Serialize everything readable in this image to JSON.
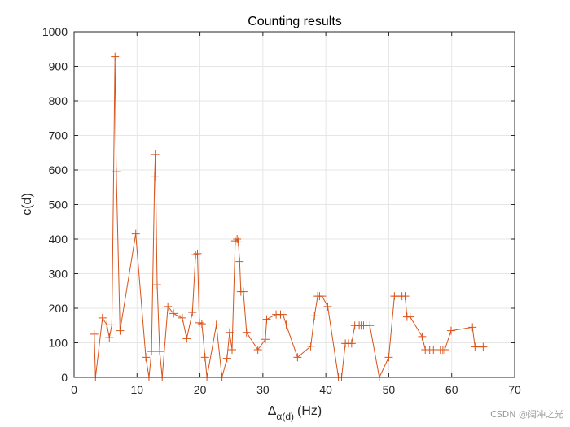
{
  "chart_data": {
    "type": "line",
    "title": "Counting results",
    "ylabel": "c(d)",
    "xlabel": {
      "symbol": "Δ",
      "subscript": "α(d)",
      "unit": "(Hz)"
    },
    "xlim": [
      0,
      70
    ],
    "ylim": [
      0,
      1000
    ],
    "xticks": [
      "0",
      "10",
      "20",
      "30",
      "40",
      "50",
      "60",
      "70"
    ],
    "yticks": [
      "0",
      "100",
      "200",
      "300",
      "400",
      "500",
      "600",
      "700",
      "800",
      "900",
      "1000"
    ],
    "grid": true,
    "marker": "+",
    "line_color": "#D95319",
    "series": [
      {
        "points": [
          [
            3.2,
            125
          ],
          [
            3.4,
            0
          ],
          [
            4.5,
            172
          ],
          [
            5.2,
            152
          ],
          [
            5.6,
            115
          ],
          [
            6.0,
            152
          ],
          [
            6.5,
            928
          ],
          [
            6.7,
            595
          ],
          [
            7.3,
            135
          ],
          [
            9.8,
            415
          ],
          [
            11.4,
            58
          ],
          [
            11.9,
            0
          ],
          [
            12.3,
            75
          ],
          [
            12.8,
            582
          ],
          [
            12.9,
            645
          ],
          [
            13.2,
            268
          ],
          [
            13.6,
            75
          ],
          [
            14.0,
            0
          ],
          [
            14.9,
            205
          ],
          [
            15.8,
            185
          ],
          [
            16.5,
            178
          ],
          [
            17.2,
            172
          ],
          [
            17.9,
            112
          ],
          [
            18.8,
            188
          ],
          [
            19.3,
            355
          ],
          [
            19.6,
            358
          ],
          [
            19.9,
            158
          ],
          [
            20.3,
            155
          ],
          [
            20.8,
            58
          ],
          [
            21.1,
            0
          ],
          [
            22.6,
            152
          ],
          [
            23.5,
            0
          ],
          [
            24.3,
            55
          ],
          [
            24.7,
            130
          ],
          [
            25.1,
            80
          ],
          [
            25.6,
            395
          ],
          [
            25.9,
            400
          ],
          [
            26.1,
            392
          ],
          [
            26.3,
            335
          ],
          [
            26.5,
            248
          ],
          [
            26.9,
            248
          ],
          [
            27.4,
            130
          ],
          [
            29.2,
            80
          ],
          [
            30.4,
            110
          ],
          [
            30.6,
            168
          ],
          [
            32.1,
            182
          ],
          [
            32.8,
            182
          ],
          [
            33.2,
            182
          ],
          [
            33.7,
            152
          ],
          [
            35.5,
            58
          ],
          [
            37.6,
            90
          ],
          [
            38.2,
            178
          ],
          [
            38.7,
            235
          ],
          [
            39.0,
            235
          ],
          [
            39.4,
            235
          ],
          [
            40.3,
            205
          ],
          [
            42.0,
            0
          ],
          [
            42.5,
            0
          ],
          [
            43.1,
            98
          ],
          [
            43.6,
            98
          ],
          [
            44.1,
            98
          ],
          [
            44.6,
            150
          ],
          [
            45.3,
            150
          ],
          [
            45.6,
            150
          ],
          [
            46.0,
            150
          ],
          [
            46.4,
            150
          ],
          [
            47.0,
            150
          ],
          [
            48.5,
            0
          ],
          [
            50.0,
            58
          ],
          [
            50.9,
            235
          ],
          [
            51.3,
            235
          ],
          [
            52.1,
            235
          ],
          [
            52.6,
            235
          ],
          [
            52.9,
            175
          ],
          [
            53.4,
            175
          ],
          [
            55.3,
            118
          ],
          [
            55.8,
            80
          ],
          [
            56.5,
            80
          ],
          [
            57.1,
            80
          ],
          [
            58.2,
            80
          ],
          [
            58.6,
            80
          ],
          [
            58.9,
            80
          ],
          [
            59.9,
            135
          ],
          [
            63.3,
            145
          ],
          [
            63.7,
            88
          ],
          [
            65.0,
            88
          ]
        ]
      }
    ]
  },
  "watermark": "CSDN @阔冲之光"
}
